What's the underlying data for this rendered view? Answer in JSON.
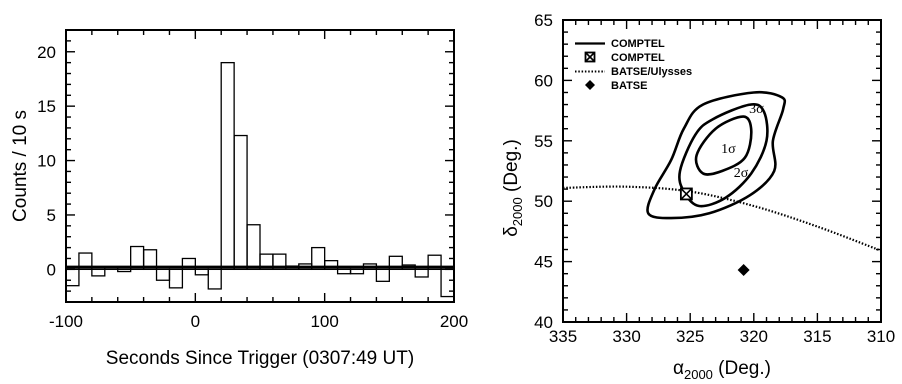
{
  "chart_data": [
    {
      "type": "bar",
      "subtype": "histogram",
      "title": "",
      "xlabel": "Seconds Since Trigger (0307:49 UT)",
      "ylabel": "Counts / 10 s",
      "xlim": [
        -100,
        200
      ],
      "ylim": [
        -3,
        22
      ],
      "xticks": [
        "-100",
        "0",
        "100",
        "200"
      ],
      "yticks": [
        "0",
        "5",
        "10",
        "15",
        "20"
      ],
      "bin_width": 10,
      "bin_starts": [
        -100,
        -90,
        -80,
        -70,
        -60,
        -50,
        -40,
        -30,
        -20,
        -10,
        0,
        10,
        20,
        30,
        40,
        50,
        60,
        70,
        80,
        90,
        100,
        110,
        120,
        130,
        140,
        150,
        160,
        170,
        180,
        190
      ],
      "values": [
        -1.5,
        1.5,
        -0.6,
        0.2,
        -0.2,
        2.1,
        1.8,
        -1.0,
        -1.7,
        1.0,
        -0.5,
        -1.8,
        19.0,
        12.3,
        4.1,
        1.4,
        1.4,
        0.3,
        0.5,
        2.0,
        0.8,
        -0.4,
        -0.4,
        0.5,
        -1.1,
        1.2,
        0.4,
        -0.7,
        1.3,
        -2.5
      ],
      "background_level": 0.2,
      "grid": false
    },
    {
      "type": "contour",
      "title": "",
      "xlabel": "α2000 (Deg.)",
      "xlabel_parts": {
        "base": "α",
        "sub": "2000",
        "rest": " (Deg.)"
      },
      "ylabel": "δ2000 (Deg.)",
      "ylabel_parts": {
        "base": "δ",
        "sub": "2000",
        "rest": " (Deg.)"
      },
      "xlim": [
        335,
        310
      ],
      "ylim": [
        40,
        65
      ],
      "xticks": [
        "335",
        "330",
        "325",
        "320",
        "315",
        "310"
      ],
      "yticks": [
        "40",
        "45",
        "50",
        "55",
        "60",
        "65"
      ],
      "legend_placement": "top-left",
      "legend": [
        {
          "label": "COMPTEL",
          "marker": "solid-line"
        },
        {
          "label": "COMPTEL",
          "marker": "boxed-x"
        },
        {
          "label": "BATSE/Ulysses",
          "marker": "dotted-line"
        },
        {
          "label": "BATSE",
          "marker": "diamond"
        }
      ],
      "contours": [
        {
          "label": "1σ",
          "label_pos": [
            322.0,
            54.0
          ],
          "points": [
            [
              323.0,
              56.0
            ],
            [
              320.8,
              57.0
            ],
            [
              320.2,
              55.8
            ],
            [
              320.7,
              53.6
            ],
            [
              322.5,
              52.5
            ],
            [
              324.0,
              52.3
            ],
            [
              324.5,
              53.8
            ]
          ]
        },
        {
          "label": "2σ",
          "label_pos": [
            321.0,
            52.0
          ],
          "points": [
            [
              323.2,
              56.8
            ],
            [
              320.3,
              58.0
            ],
            [
              319.2,
              57.4
            ],
            [
              319.0,
              55.0
            ],
            [
              320.2,
              52.3
            ],
            [
              322.2,
              50.3
            ],
            [
              324.3,
              49.6
            ],
            [
              325.5,
              50.8
            ],
            [
              325.8,
              52.5
            ],
            [
              324.6,
              55.5
            ]
          ]
        },
        {
          "label": "3σ",
          "label_pos": [
            319.8,
            57.3
          ],
          "points": [
            [
              324.0,
              58.0
            ],
            [
              320.0,
              59.0
            ],
            [
              317.8,
              58.6
            ],
            [
              317.7,
              57.6
            ],
            [
              318.5,
              55.0
            ],
            [
              318.4,
              52.5
            ],
            [
              320.3,
              50.5
            ],
            [
              323.5,
              49.0
            ],
            [
              326.5,
              48.6
            ],
            [
              328.3,
              49.0
            ],
            [
              327.8,
              51.0
            ],
            [
              326.5,
              53.4
            ],
            [
              325.5,
              56.0
            ]
          ]
        }
      ],
      "comptel_position": [
        325.3,
        50.6
      ],
      "batse_position": [
        320.8,
        44.3
      ],
      "batse_ulysses_arc": [
        [
          335.0,
          51.1
        ],
        [
          330.0,
          51.2
        ],
        [
          325.0,
          50.8
        ],
        [
          320.0,
          49.6
        ],
        [
          315.0,
          47.9
        ],
        [
          310.0,
          45.9
        ]
      ]
    }
  ]
}
